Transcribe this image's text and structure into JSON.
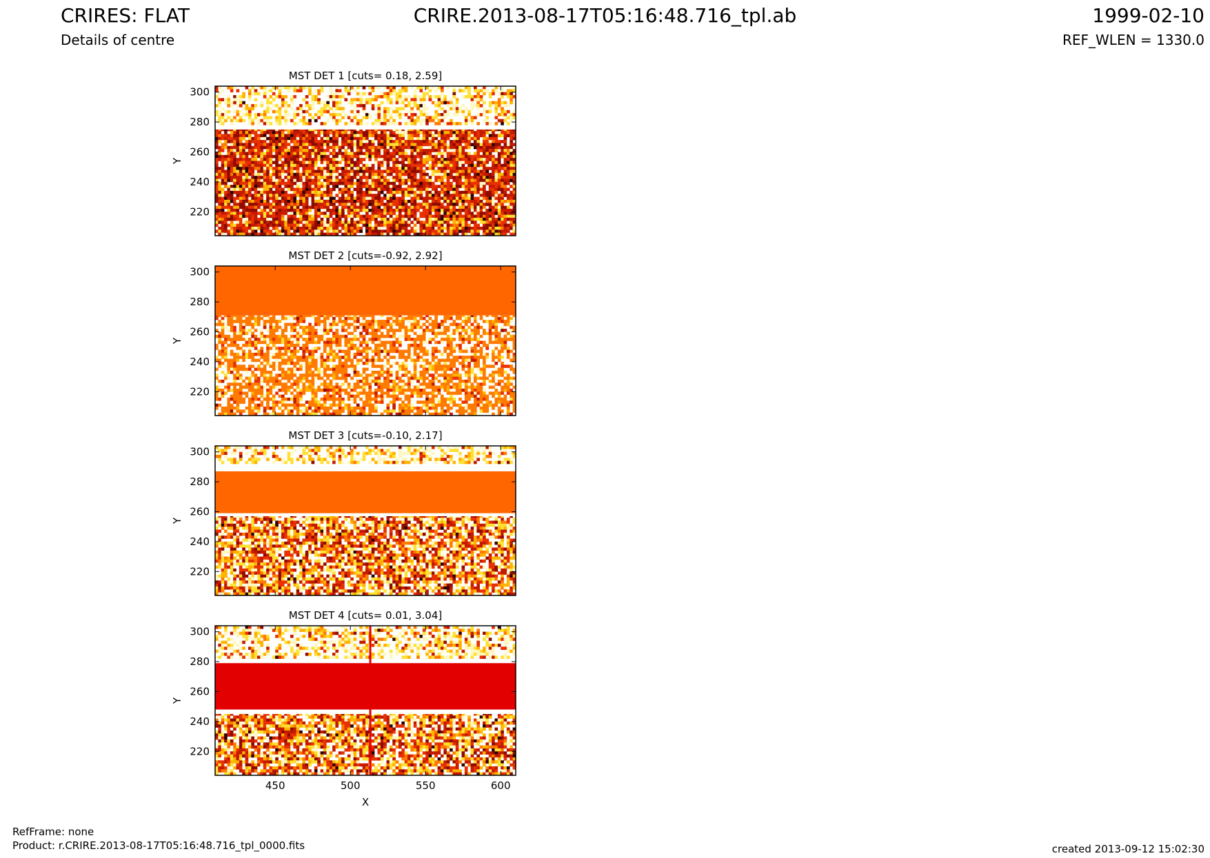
{
  "header": {
    "title_left": "CRIRES: FLAT",
    "subtitle_left": "Details of centre",
    "title_center": "CRIRE.2013-08-17T05:16:48.716_tpl.ab",
    "date_right": "1999-02-10",
    "ref_wlen": "REF_WLEN = 1330.0"
  },
  "footer": {
    "refframe": "RefFrame: none",
    "product": "Product: r.CRIRE.2013-08-17T05:16:48.716_tpl_0000.fits",
    "created": "created 2013-09-12 15:02:30"
  },
  "colors": {
    "band_orange": "#ff6600",
    "band_red": "#e30000",
    "noise_palette": [
      "#ffffff",
      "#fff7c0",
      "#ffe033",
      "#ffb300",
      "#ff7a00",
      "#e83000",
      "#c41a00",
      "#8f0a00",
      "#2a0000"
    ]
  },
  "chart_data": [
    {
      "type": "heatmap",
      "title": "MST DET 1 [cuts= 0.18, 2.59]",
      "xlabel": "",
      "ylabel": "Y",
      "xlim": [
        410,
        610
      ],
      "ylim": [
        204,
        304
      ],
      "xticks": [
        450,
        500,
        550,
        600
      ],
      "yticks": [
        220,
        240,
        260,
        280,
        300
      ],
      "xtick_labels_visible": false,
      "cuts": [
        0.18,
        2.59
      ],
      "regions": [
        {
          "y_range": [
            204,
            275
          ],
          "pattern": "dark-red-noise"
        },
        {
          "y_range": [
            275,
            278
          ],
          "pattern": "white"
        },
        {
          "y_range": [
            278,
            304
          ],
          "pattern": "light-noise"
        }
      ]
    },
    {
      "type": "heatmap",
      "title": "MST DET 2 [cuts=-0.92, 2.92]",
      "xlabel": "",
      "ylabel": "Y",
      "xlim": [
        410,
        610
      ],
      "ylim": [
        204,
        304
      ],
      "xticks": [
        450,
        500,
        550,
        600
      ],
      "yticks": [
        220,
        240,
        260,
        280,
        300
      ],
      "xtick_labels_visible": false,
      "cuts": [
        -0.92,
        2.92
      ],
      "regions": [
        {
          "y_range": [
            204,
            271
          ],
          "pattern": "orange-white-noise"
        },
        {
          "y_range": [
            271,
            304
          ],
          "pattern": "solid-orange"
        }
      ]
    },
    {
      "type": "heatmap",
      "title": "MST DET 3 [cuts=-0.10, 2.17]",
      "xlabel": "",
      "ylabel": "Y",
      "xlim": [
        410,
        610
      ],
      "ylim": [
        204,
        304
      ],
      "xticks": [
        450,
        500,
        550,
        600
      ],
      "yticks": [
        220,
        240,
        260,
        280,
        300
      ],
      "xtick_labels_visible": false,
      "cuts": [
        -0.1,
        2.17
      ],
      "regions": [
        {
          "y_range": [
            204,
            257
          ],
          "pattern": "red-noise"
        },
        {
          "y_range": [
            257,
            259
          ],
          "pattern": "white"
        },
        {
          "y_range": [
            259,
            287
          ],
          "pattern": "solid-orange"
        },
        {
          "y_range": [
            287,
            292
          ],
          "pattern": "white"
        },
        {
          "y_range": [
            292,
            304
          ],
          "pattern": "light-noise"
        }
      ]
    },
    {
      "type": "heatmap",
      "title": "MST DET 4 [cuts= 0.01, 3.04]",
      "xlabel": "X",
      "ylabel": "Y",
      "xlim": [
        410,
        610
      ],
      "ylim": [
        204,
        304
      ],
      "xticks": [
        450,
        500,
        550,
        600
      ],
      "yticks": [
        220,
        240,
        260,
        280,
        300
      ],
      "xtick_labels_visible": true,
      "cuts": [
        0.01,
        3.04
      ],
      "regions": [
        {
          "y_range": [
            204,
            245
          ],
          "pattern": "red-noise"
        },
        {
          "y_range": [
            245,
            248
          ],
          "pattern": "white"
        },
        {
          "y_range": [
            248,
            279
          ],
          "pattern": "solid-red"
        },
        {
          "y_range": [
            279,
            282
          ],
          "pattern": "white"
        },
        {
          "y_range": [
            282,
            304
          ],
          "pattern": "light-noise"
        }
      ],
      "vertical_line_x": 513
    }
  ]
}
